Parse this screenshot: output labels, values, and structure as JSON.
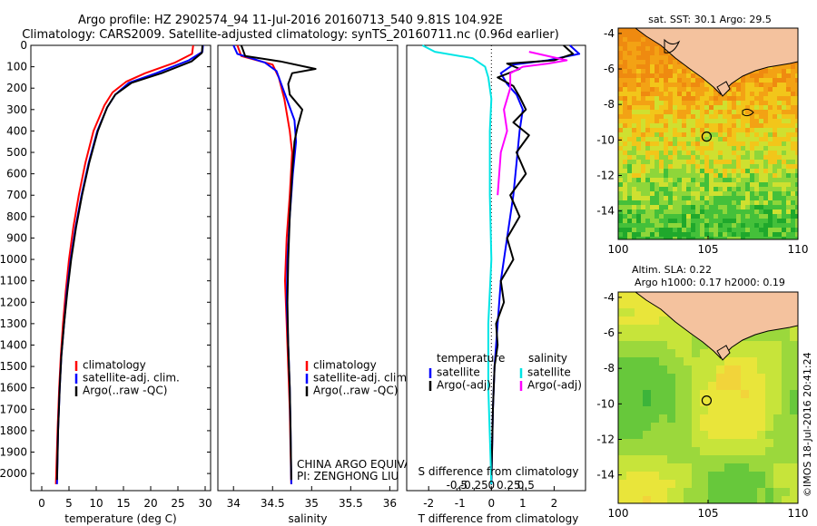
{
  "title_line1": "Argo profile: HZ 2902574_94 11-Jul-2016 20160713_540 9.81S 104.92E",
  "title_line2": "Climatology: CARS2009. Satellite-adjusted climatology: synTS_20160711.nc (0.96d earlier)",
  "depth_ticks": [
    "0",
    "100",
    "200",
    "300",
    "400",
    "500",
    "600",
    "700",
    "800",
    "900",
    "1000",
    "1100",
    "1200",
    "1300",
    "1400",
    "1500",
    "1600",
    "1700",
    "1800",
    "1900",
    "2000"
  ],
  "colors": {
    "climatology": "#ff0000",
    "satellite": "#0000ff",
    "argo": "#000000",
    "sal_satellite": "#00e5e5",
    "sal_argo": "#ff00ff"
  },
  "temperature_panel": {
    "xlabel": "temperature (deg C)",
    "xticks": [
      "0",
      "5",
      "10",
      "15",
      "20",
      "25",
      "30"
    ],
    "xlim": [
      -2,
      31
    ],
    "ylim": [
      2080,
      0
    ],
    "legend": [
      "climatology",
      "satellite-adj. clim.",
      "Argo(..raw -QC)"
    ]
  },
  "salinity_panel": {
    "xlabel": "salinity",
    "xticks": [
      "34",
      "34.5",
      "35",
      "35.5",
      "36"
    ],
    "xlim": [
      33.8,
      36.1
    ],
    "ylim": [
      2080,
      0
    ],
    "legend": [
      "climatology",
      "satellite-adj. clim.",
      "Argo(..raw -QC)"
    ],
    "annotation1": "CHINA ARGO EQUIVALENT",
    "annotation2": "PI: ZENGHONG LIU"
  },
  "difference_panel": {
    "top_label": "S difference from climatology",
    "top_ticks": [
      "-0.5",
      "-0.25",
      "0",
      "0.25",
      "0.5"
    ],
    "bottom_label": "T difference from climatology",
    "bottom_ticks": [
      "-2",
      "-1",
      "0",
      "1",
      "2"
    ],
    "xlim": [
      -2.7,
      3.0
    ],
    "ylim": [
      2080,
      0
    ],
    "legend_temperature_header": "temperature",
    "legend_salinity_header": "salinity",
    "legend_satellite": "satellite",
    "legend_argo": "Argo(-adj)"
  },
  "sst_map": {
    "title": "sat. SST: 30.1 Argo: 29.5",
    "xticks": [
      "100",
      "105",
      "110"
    ],
    "yticks": [
      "-4",
      "-6",
      "-8",
      "-10",
      "-12",
      "-14"
    ],
    "xlim": [
      100,
      110
    ],
    "ylim": [
      -15.6,
      -3.7
    ],
    "argo_position": {
      "lon": 104.92,
      "lat": -9.81
    }
  },
  "sla_map": {
    "title_line1": "Altim. SLA: 0.22",
    "title_line2": "Argo h1000: 0.17 h2000: 0.19",
    "xticks": [
      "100",
      "105",
      "110"
    ],
    "yticks": [
      "-4",
      "-6",
      "-8",
      "-10",
      "-12",
      "-14"
    ],
    "xlim": [
      100,
      110
    ],
    "ylim": [
      -15.6,
      -3.7
    ],
    "argo_position": {
      "lon": 104.92,
      "lat": -9.81
    }
  },
  "footer_stamp": "©IMOS 18-Jul-2016 20:41:24",
  "chart_data": [
    {
      "type": "line",
      "xlabel": "temperature (deg C)",
      "ylabel": "",
      "xlim": [
        -2,
        31
      ],
      "ylim": [
        2080,
        0
      ],
      "series": [
        {
          "name": "climatology",
          "color": "#ff0000",
          "points": [
            [
              27.8,
              0
            ],
            [
              27.6,
              40
            ],
            [
              24.5,
              80
            ],
            [
              19,
              130
            ],
            [
              15.5,
              170
            ],
            [
              13,
              220
            ],
            [
              11.5,
              280
            ],
            [
              9.5,
              400
            ],
            [
              8,
              550
            ],
            [
              6.8,
              700
            ],
            [
              5.8,
              850
            ],
            [
              5,
              1000
            ],
            [
              4.4,
              1150
            ],
            [
              3.9,
              1300
            ],
            [
              3.5,
              1450
            ],
            [
              3.2,
              1600
            ],
            [
              2.9,
              1800
            ],
            [
              2.6,
              2050
            ]
          ]
        },
        {
          "name": "satellite-adj. clim.",
          "color": "#0000ff",
          "points": [
            [
              29.6,
              0
            ],
            [
              29.5,
              30
            ],
            [
              27,
              70
            ],
            [
              21,
              130
            ],
            [
              16,
              175
            ],
            [
              13.5,
              230
            ],
            [
              12,
              290
            ],
            [
              10.2,
              400
            ],
            [
              8.6,
              550
            ],
            [
              7.3,
              700
            ],
            [
              6.2,
              850
            ],
            [
              5.3,
              1000
            ],
            [
              4.6,
              1150
            ],
            [
              4.1,
              1300
            ],
            [
              3.6,
              1450
            ],
            [
              3.3,
              1600
            ],
            [
              3,
              1800
            ],
            [
              2.8,
              2050
            ]
          ]
        },
        {
          "name": "Argo(..raw -QC)",
          "color": "#000000",
          "points": [
            [
              29.5,
              0
            ],
            [
              29.4,
              35
            ],
            [
              27.5,
              75
            ],
            [
              22,
              130
            ],
            [
              16.5,
              175
            ],
            [
              13.5,
              230
            ],
            [
              12,
              290
            ],
            [
              10.3,
              400
            ],
            [
              8.7,
              550
            ],
            [
              7.4,
              700
            ],
            [
              6.3,
              850
            ],
            [
              5.4,
              1000
            ],
            [
              4.7,
              1150
            ],
            [
              4.1,
              1300
            ],
            [
              3.6,
              1450
            ],
            [
              3.3,
              1600
            ],
            [
              3,
              1800
            ],
            [
              2.8,
              2030
            ]
          ]
        }
      ]
    },
    {
      "type": "line",
      "xlabel": "salinity",
      "ylabel": "",
      "xlim": [
        33.8,
        36.1
      ],
      "ylim": [
        2080,
        0
      ],
      "series": [
        {
          "name": "climatology",
          "color": "#ff0000",
          "points": [
            [
              34.05,
              0
            ],
            [
              34.1,
              50
            ],
            [
              34.5,
              90
            ],
            [
              34.58,
              150
            ],
            [
              34.65,
              250
            ],
            [
              34.72,
              400
            ],
            [
              34.75,
              500
            ],
            [
              34.72,
              700
            ],
            [
              34.68,
              900
            ],
            [
              34.66,
              1100
            ],
            [
              34.68,
              1300
            ],
            [
              34.7,
              1500
            ],
            [
              34.72,
              1700
            ],
            [
              34.73,
              1900
            ],
            [
              34.74,
              2050
            ]
          ]
        },
        {
          "name": "satellite-adj. clim.",
          "color": "#0000ff",
          "points": [
            [
              34.0,
              0
            ],
            [
              34.05,
              40
            ],
            [
              34.4,
              80
            ],
            [
              34.55,
              120
            ],
            [
              34.6,
              170
            ],
            [
              34.68,
              250
            ],
            [
              34.78,
              350
            ],
            [
              34.8,
              450
            ],
            [
              34.76,
              600
            ],
            [
              34.72,
              800
            ],
            [
              34.69,
              1000
            ],
            [
              34.68,
              1200
            ],
            [
              34.7,
              1400
            ],
            [
              34.72,
              1600
            ],
            [
              34.73,
              1800
            ],
            [
              34.74,
              2050
            ]
          ]
        },
        {
          "name": "Argo(..raw -QC)",
          "color": "#000000",
          "points": [
            [
              34.1,
              0
            ],
            [
              34.15,
              50
            ],
            [
              34.6,
              75
            ],
            [
              35.05,
              110
            ],
            [
              34.75,
              130
            ],
            [
              34.7,
              180
            ],
            [
              34.72,
              230
            ],
            [
              34.88,
              300
            ],
            [
              34.82,
              380
            ],
            [
              34.78,
              450
            ],
            [
              34.75,
              600
            ],
            [
              34.72,
              800
            ],
            [
              34.7,
              1000
            ],
            [
              34.69,
              1200
            ],
            [
              34.7,
              1400
            ],
            [
              34.72,
              1600
            ],
            [
              34.73,
              1800
            ],
            [
              34.74,
              2030
            ]
          ]
        }
      ]
    },
    {
      "type": "line",
      "xlabel": "T difference from climatology",
      "ylabel": "",
      "xlim": [
        -2.7,
        3.0
      ],
      "ylim": [
        2080,
        0
      ],
      "series": [
        {
          "name": "temperature satellite",
          "color": "#0000ff",
          "points": [
            [
              2.5,
              0
            ],
            [
              2.8,
              40
            ],
            [
              1.8,
              70
            ],
            [
              0.7,
              90
            ],
            [
              0.3,
              130
            ],
            [
              0.5,
              180
            ],
            [
              0.8,
              230
            ],
            [
              1.0,
              300
            ],
            [
              0.9,
              400
            ],
            [
              0.8,
              550
            ],
            [
              0.7,
              700
            ],
            [
              0.5,
              900
            ],
            [
              0.3,
              1100
            ],
            [
              0.2,
              1300
            ],
            [
              0.1,
              1500
            ],
            [
              0.05,
              1700
            ],
            [
              0.02,
              1900
            ],
            [
              0.0,
              2050
            ]
          ]
        },
        {
          "name": "temperature Argo(-adj)",
          "color": "#000000",
          "points": [
            [
              2.3,
              0
            ],
            [
              2.6,
              40
            ],
            [
              2.0,
              70
            ],
            [
              0.5,
              85
            ],
            [
              0.9,
              110
            ],
            [
              0.2,
              150
            ],
            [
              0.7,
              190
            ],
            [
              0.9,
              240
            ],
            [
              1.1,
              300
            ],
            [
              0.7,
              360
            ],
            [
              1.2,
              420
            ],
            [
              0.8,
              500
            ],
            [
              1.1,
              600
            ],
            [
              0.6,
              700
            ],
            [
              0.9,
              800
            ],
            [
              0.5,
              900
            ],
            [
              0.7,
              1000
            ],
            [
              0.3,
              1100
            ],
            [
              0.4,
              1200
            ],
            [
              0.15,
              1300
            ],
            [
              0.2,
              1400
            ],
            [
              0.1,
              1500
            ],
            [
              0.05,
              1700
            ],
            [
              0.02,
              1900
            ],
            [
              0.0,
              2030
            ]
          ]
        },
        {
          "name": "salinity satellite",
          "color": "#00e5e5",
          "points": [
            [
              -2.2,
              0
            ],
            [
              -1.8,
              30
            ],
            [
              -0.6,
              60
            ],
            [
              -0.2,
              100
            ],
            [
              -0.1,
              150
            ],
            [
              0.0,
              250
            ],
            [
              -0.05,
              400
            ],
            [
              -0.05,
              700
            ],
            [
              0.0,
              1000
            ],
            [
              -0.1,
              1300
            ],
            [
              -0.1,
              1600
            ],
            [
              0.0,
              2050
            ]
          ]
        },
        {
          "name": "salinity Argo(-adj)",
          "color": "#ff00ff",
          "points": [
            [
              1.2,
              30
            ],
            [
              2.4,
              70
            ],
            [
              1.8,
              85
            ],
            [
              1.0,
              100
            ],
            [
              0.6,
              130
            ],
            [
              0.6,
              200
            ],
            [
              0.4,
              300
            ],
            [
              0.5,
              400
            ],
            [
              0.3,
              500
            ],
            [
              0.2,
              700
            ]
          ]
        }
      ]
    }
  ]
}
